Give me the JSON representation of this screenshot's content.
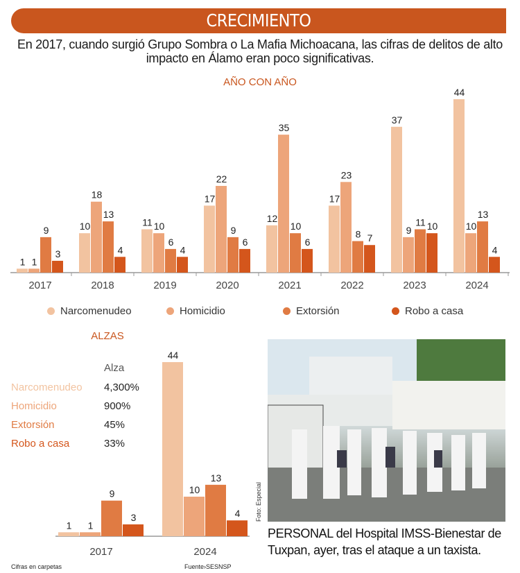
{
  "header": {
    "title": "CRECIMIENTO",
    "intro": "En 2017, cuando surgió Grupo Sombra o La Mafia Michoacana, las cifras de delitos de alto impacto en Álamo eran poco significativas."
  },
  "colors": {
    "banner": "#c9561e",
    "Narcomenudeo": "#f2c3a0",
    "Homicidio": "#eda57a",
    "Extorsión": "#e07b43",
    "Robo a casa": "#d4561c"
  },
  "chart_data": [
    {
      "type": "bar",
      "title": "AÑO CON AÑO",
      "categories": [
        "2017",
        "2018",
        "2019",
        "2020",
        "2021",
        "2022",
        "2023",
        "2024"
      ],
      "series": [
        {
          "name": "Narcomenudeo",
          "values": [
            1,
            10,
            11,
            17,
            12,
            17,
            37,
            44
          ]
        },
        {
          "name": "Homicidio",
          "values": [
            1,
            18,
            10,
            22,
            35,
            23,
            9,
            10
          ]
        },
        {
          "name": "Extorsión",
          "values": [
            9,
            13,
            6,
            9,
            10,
            8,
            11,
            13
          ]
        },
        {
          "name": "Robo a casa",
          "values": [
            3,
            4,
            4,
            6,
            6,
            7,
            10,
            4
          ]
        }
      ],
      "ylim": [
        0,
        44
      ],
      "grid": false,
      "legend": "bottom"
    },
    {
      "type": "bar",
      "title": "ALZAS",
      "categories": [
        "2017",
        "2024"
      ],
      "series": [
        {
          "name": "Narcomenudeo",
          "values": [
            1,
            44
          ]
        },
        {
          "name": "Homicidio",
          "values": [
            1,
            10
          ]
        },
        {
          "name": "Extorsión",
          "values": [
            9,
            13
          ]
        },
        {
          "name": "Robo a casa",
          "values": [
            3,
            4
          ]
        }
      ],
      "ylim": [
        0,
        44
      ],
      "table": {
        "header": "Alza",
        "rows": [
          {
            "label": "Narcomenudeo",
            "value": "4,300%"
          },
          {
            "label": "Homicidio",
            "value": "900%"
          },
          {
            "label": "Extorsión",
            "value": "45%"
          },
          {
            "label": "Robo a casa",
            "value": "33%"
          }
        ]
      }
    }
  ],
  "photo": {
    "credit": "Foto: Especial",
    "caption": "PERSONAL del Hospital IMSS-Bienestar de Tuxpan, ayer, tras el ataque a un taxista."
  },
  "footer": {
    "note": "Cifras en carpetas",
    "source": "Fuente›SESNSP"
  }
}
